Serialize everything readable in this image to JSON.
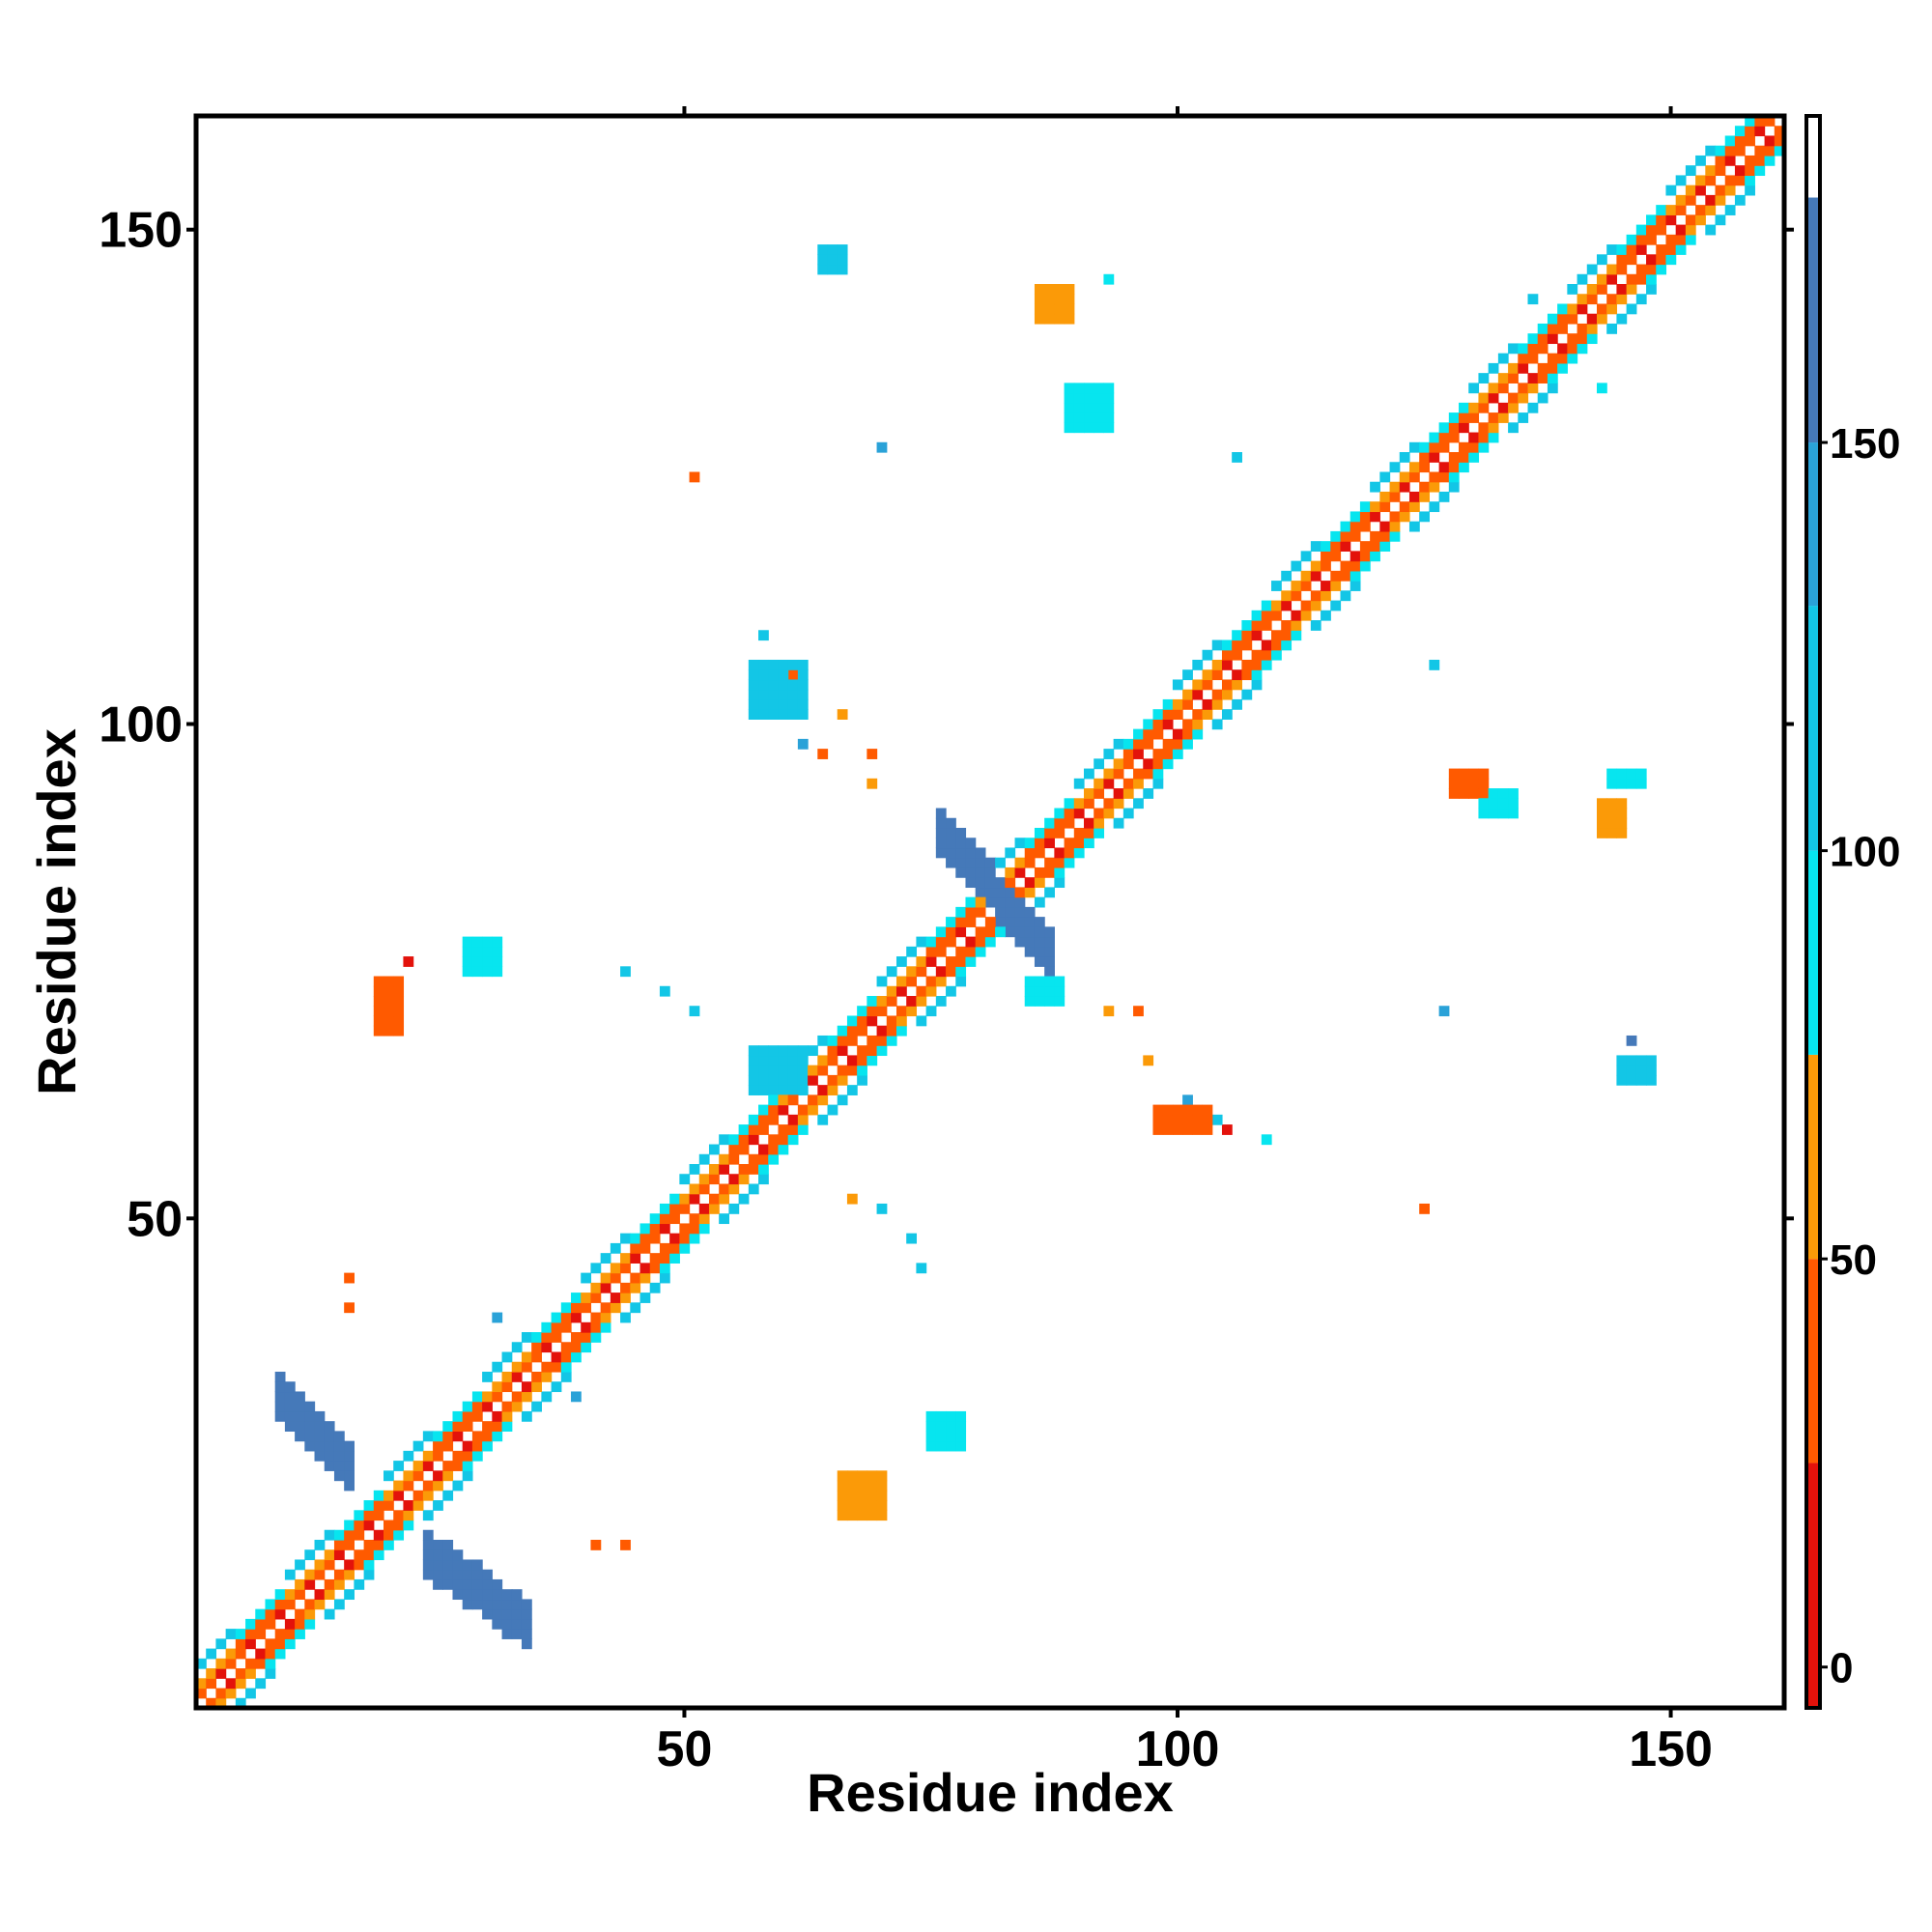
{
  "chart_data": {
    "type": "heatmap",
    "title": "",
    "xlabel": "Residue index",
    "ylabel": "Residue index",
    "xlim": [
      1,
      161
    ],
    "ylim": [
      1,
      161
    ],
    "xticks": [
      50,
      100,
      150
    ],
    "yticks": [
      50,
      100,
      150
    ],
    "grid": false,
    "colorbar": {
      "ticks": [
        0,
        50,
        100,
        150
      ],
      "range": [
        -5,
        190
      ],
      "bands": [
        {
          "from": -5,
          "to": 25,
          "color": "#e3120b"
        },
        {
          "from": 25,
          "to": 50,
          "color": "#ff5a00"
        },
        {
          "from": 50,
          "to": 75,
          "color": "#fb9a08"
        },
        {
          "from": 75,
          "to": 100,
          "color": "#07e5ef"
        },
        {
          "from": 100,
          "to": 130,
          "color": "#13c6e6"
        },
        {
          "from": 130,
          "to": 150,
          "color": "#2aa2d8"
        },
        {
          "from": 150,
          "to": 180,
          "color": "#4579b9"
        },
        {
          "from": 180,
          "to": 190,
          "color": "#ffffff"
        }
      ]
    },
    "diagonal": {
      "from": 1,
      "to": 161,
      "palette": [
        "#e3120b",
        "#ff5a00",
        "#fb9a08",
        "#07e5ef",
        "#13c6e6"
      ]
    },
    "patches": [
      {
        "x0": 9,
        "x1": 16,
        "y0": 25,
        "y1": 32,
        "dir": "anti",
        "width": 2,
        "color": "#4579b9"
      },
      {
        "x0": 24,
        "x1": 34,
        "y0": 9,
        "y1": 16,
        "dir": "anti",
        "width": 2,
        "color": "#4579b9"
      },
      {
        "x0": 76,
        "x1": 81,
        "y0": 84,
        "y1": 89,
        "dir": "anti",
        "width": 2,
        "color": "#4579b9"
      },
      {
        "x0": 82,
        "x1": 87,
        "y0": 77,
        "y1": 82,
        "dir": "anti",
        "width": 2,
        "color": "#4579b9"
      },
      {
        "x0": 19,
        "x1": 21,
        "y0": 69,
        "y1": 74,
        "color": "#ff5a00"
      },
      {
        "x0": 28,
        "x1": 31,
        "y0": 75,
        "y1": 78,
        "color": "#07e5ef"
      },
      {
        "x0": 66,
        "x1": 70,
        "y0": 20,
        "y1": 24,
        "color": "#fb9a08"
      },
      {
        "x0": 75,
        "x1": 78,
        "y0": 27,
        "y1": 30,
        "color": "#07e5ef"
      },
      {
        "x0": 57,
        "x1": 62,
        "y0": 63,
        "y1": 67,
        "color": "#13c6e6"
      },
      {
        "x0": 86,
        "x1": 89,
        "y0": 141,
        "y1": 144,
        "color": "#fb9a08"
      },
      {
        "x0": 89,
        "x1": 93,
        "y0": 130,
        "y1": 134,
        "color": "#07e5ef"
      },
      {
        "x0": 57,
        "x1": 62,
        "y0": 101,
        "y1": 106,
        "color": "#13c6e6"
      },
      {
        "x0": 64,
        "x1": 66,
        "y0": 146,
        "y1": 148,
        "color": "#13c6e6"
      },
      {
        "x0": 128,
        "x1": 131,
        "y0": 93,
        "y1": 95,
        "color": "#ff5a00"
      },
      {
        "x0": 131,
        "x1": 134,
        "y0": 91,
        "y1": 93,
        "color": "#07e5ef"
      },
      {
        "x0": 143,
        "x1": 145,
        "y0": 89,
        "y1": 92,
        "color": "#fb9a08"
      },
      {
        "x0": 144,
        "x1": 147,
        "y0": 94,
        "y1": 95,
        "color": "#07e5ef"
      },
      {
        "x0": 98,
        "x1": 103,
        "y0": 59,
        "y1": 61,
        "color": "#ff5a00"
      },
      {
        "x0": 85,
        "x1": 88,
        "y0": 72,
        "y1": 74,
        "color": "#07e5ef"
      },
      {
        "x0": 145,
        "x1": 148,
        "y0": 64,
        "y1": 66,
        "color": "#13c6e6"
      }
    ],
    "points": [
      {
        "x": 16,
        "y": 44,
        "color": "#ff5a00"
      },
      {
        "x": 16,
        "y": 41,
        "color": "#ff5a00"
      },
      {
        "x": 31,
        "y": 40,
        "color": "#2aa2d8"
      },
      {
        "x": 39,
        "y": 32,
        "color": "#2aa2d8"
      },
      {
        "x": 41,
        "y": 17,
        "color": "#ff5a00"
      },
      {
        "x": 44,
        "y": 17,
        "color": "#ff5a00"
      },
      {
        "x": 22,
        "y": 76,
        "color": "#e3120b"
      },
      {
        "x": 51,
        "y": 125,
        "color": "#ff5a00"
      },
      {
        "x": 70,
        "y": 128,
        "color": "#2aa2d8"
      },
      {
        "x": 106,
        "y": 127,
        "color": "#13c6e6"
      },
      {
        "x": 67,
        "y": 52,
        "color": "#fb9a08"
      },
      {
        "x": 70,
        "y": 51,
        "color": "#13c6e6"
      },
      {
        "x": 73,
        "y": 48,
        "color": "#13c6e6"
      },
      {
        "x": 74,
        "y": 45,
        "color": "#13c6e6"
      },
      {
        "x": 69,
        "y": 97,
        "color": "#ff5a00"
      },
      {
        "x": 69,
        "y": 94,
        "color": "#fb9a08"
      },
      {
        "x": 44,
        "y": 75,
        "color": "#13c6e6"
      },
      {
        "x": 48,
        "y": 73,
        "color": "#13c6e6"
      },
      {
        "x": 51,
        "y": 71,
        "color": "#13c6e6"
      },
      {
        "x": 93,
        "y": 71,
        "color": "#fb9a08"
      },
      {
        "x": 96,
        "y": 71,
        "color": "#ff5a00"
      },
      {
        "x": 97,
        "y": 66,
        "color": "#fb9a08"
      },
      {
        "x": 105,
        "y": 59,
        "color": "#e3120b"
      },
      {
        "x": 109,
        "y": 58,
        "color": "#07e5ef"
      },
      {
        "x": 125,
        "y": 51,
        "color": "#ff5a00"
      },
      {
        "x": 126,
        "y": 106,
        "color": "#13c6e6"
      },
      {
        "x": 136,
        "y": 143,
        "color": "#13c6e6"
      },
      {
        "x": 143,
        "y": 134,
        "color": "#07e5ef"
      },
      {
        "x": 146,
        "y": 68,
        "color": "#4579b9"
      },
      {
        "x": 127,
        "y": 71,
        "color": "#2aa2d8"
      },
      {
        "x": 93,
        "y": 145,
        "color": "#07e5ef"
      },
      {
        "x": 62,
        "y": 98,
        "color": "#2aa2d8"
      },
      {
        "x": 64,
        "y": 97,
        "color": "#ff5a00"
      },
      {
        "x": 66,
        "y": 101,
        "color": "#fb9a08"
      },
      {
        "x": 61,
        "y": 105,
        "color": "#ff5a00"
      },
      {
        "x": 58,
        "y": 109,
        "color": "#13c6e6"
      },
      {
        "x": 101,
        "y": 62,
        "color": "#2aa2d8"
      },
      {
        "x": 104,
        "y": 60,
        "color": "#13c6e6"
      }
    ]
  }
}
